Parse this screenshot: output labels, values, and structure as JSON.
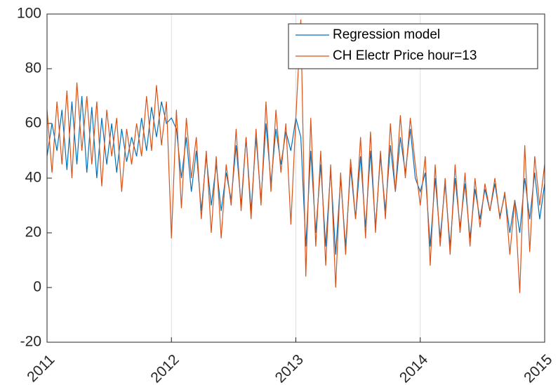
{
  "chart_data": {
    "type": "line",
    "x": [
      2011,
      2011.04,
      2011.08,
      2011.12,
      2011.16,
      2011.2,
      2011.24,
      2011.28,
      2011.32,
      2011.36,
      2011.4,
      2011.44,
      2011.48,
      2011.52,
      2011.56,
      2011.6,
      2011.64,
      2011.68,
      2011.72,
      2011.76,
      2011.8,
      2011.84,
      2011.88,
      2011.92,
      2011.96,
      2012,
      2012.04,
      2012.08,
      2012.12,
      2012.16,
      2012.2,
      2012.24,
      2012.28,
      2012.32,
      2012.36,
      2012.4,
      2012.44,
      2012.48,
      2012.52,
      2012.56,
      2012.6,
      2012.64,
      2012.68,
      2012.72,
      2012.76,
      2012.8,
      2012.84,
      2012.88,
      2012.92,
      2012.96,
      2013,
      2013.04,
      2013.08,
      2013.12,
      2013.16,
      2013.2,
      2013.24,
      2013.28,
      2013.32,
      2013.36,
      2013.4,
      2013.44,
      2013.48,
      2013.52,
      2013.56,
      2013.6,
      2013.64,
      2013.68,
      2013.72,
      2013.76,
      2013.8,
      2013.84,
      2013.88,
      2013.92,
      2013.96,
      2014,
      2014.04,
      2014.08,
      2014.12,
      2014.16,
      2014.2,
      2014.24,
      2014.28,
      2014.32,
      2014.36,
      2014.4,
      2014.44,
      2014.48,
      2014.52,
      2014.56,
      2014.6,
      2014.64,
      2014.68,
      2014.72,
      2014.76,
      2014.8,
      2014.84,
      2014.88,
      2014.92,
      2014.96,
      2015
    ],
    "series": [
      {
        "name": "Regression model",
        "color": "#0072bd",
        "values": [
          48,
          60,
          50,
          65,
          43,
          68,
          45,
          70,
          42,
          66,
          40,
          62,
          45,
          60,
          42,
          58,
          46,
          55,
          48,
          62,
          50,
          66,
          55,
          68,
          60,
          62,
          58,
          40,
          55,
          35,
          50,
          28,
          48,
          30,
          45,
          28,
          42,
          32,
          52,
          30,
          55,
          28,
          55,
          32,
          60,
          38,
          58,
          45,
          57,
          50,
          62,
          55,
          15,
          50,
          20,
          45,
          15,
          43,
          12,
          40,
          15,
          44,
          25,
          48,
          22,
          50,
          22,
          48,
          28,
          52,
          35,
          55,
          42,
          58,
          40,
          35,
          42,
          15,
          40,
          18,
          38,
          15,
          40,
          22,
          38,
          18,
          36,
          25,
          36,
          28,
          38,
          26,
          34,
          20,
          32,
          20,
          40,
          25,
          42,
          25,
          38
        ]
      },
      {
        "name": "CH Electr Price hour=13",
        "color": "#d95319",
        "values": [
          65,
          42,
          68,
          45,
          72,
          40,
          75,
          50,
          70,
          45,
          68,
          37,
          65,
          48,
          62,
          35,
          58,
          45,
          60,
          48,
          70,
          50,
          74,
          52,
          68,
          18,
          65,
          29,
          62,
          40,
          55,
          25,
          50,
          20,
          48,
          18,
          45,
          30,
          58,
          28,
          55,
          25,
          58,
          30,
          68,
          35,
          65,
          42,
          60,
          23,
          62,
          98,
          4,
          62,
          15,
          50,
          8,
          45,
          0,
          42,
          12,
          47,
          25,
          55,
          18,
          57,
          20,
          50,
          25,
          60,
          35,
          63,
          40,
          62,
          45,
          30,
          48,
          8,
          45,
          15,
          40,
          12,
          45,
          20,
          42,
          15,
          40,
          22,
          38,
          28,
          40,
          25,
          35,
          12,
          32,
          -2,
          52,
          13,
          48,
          30,
          45
        ]
      }
    ],
    "xlim": [
      2011,
      2015
    ],
    "xticks": [
      2011,
      2012,
      2013,
      2014,
      2015
    ],
    "ylim": [
      -20,
      100
    ],
    "yticks": [
      -20,
      0,
      20,
      40,
      60,
      80,
      100
    ],
    "xgrid": true,
    "legend": "top-right"
  }
}
